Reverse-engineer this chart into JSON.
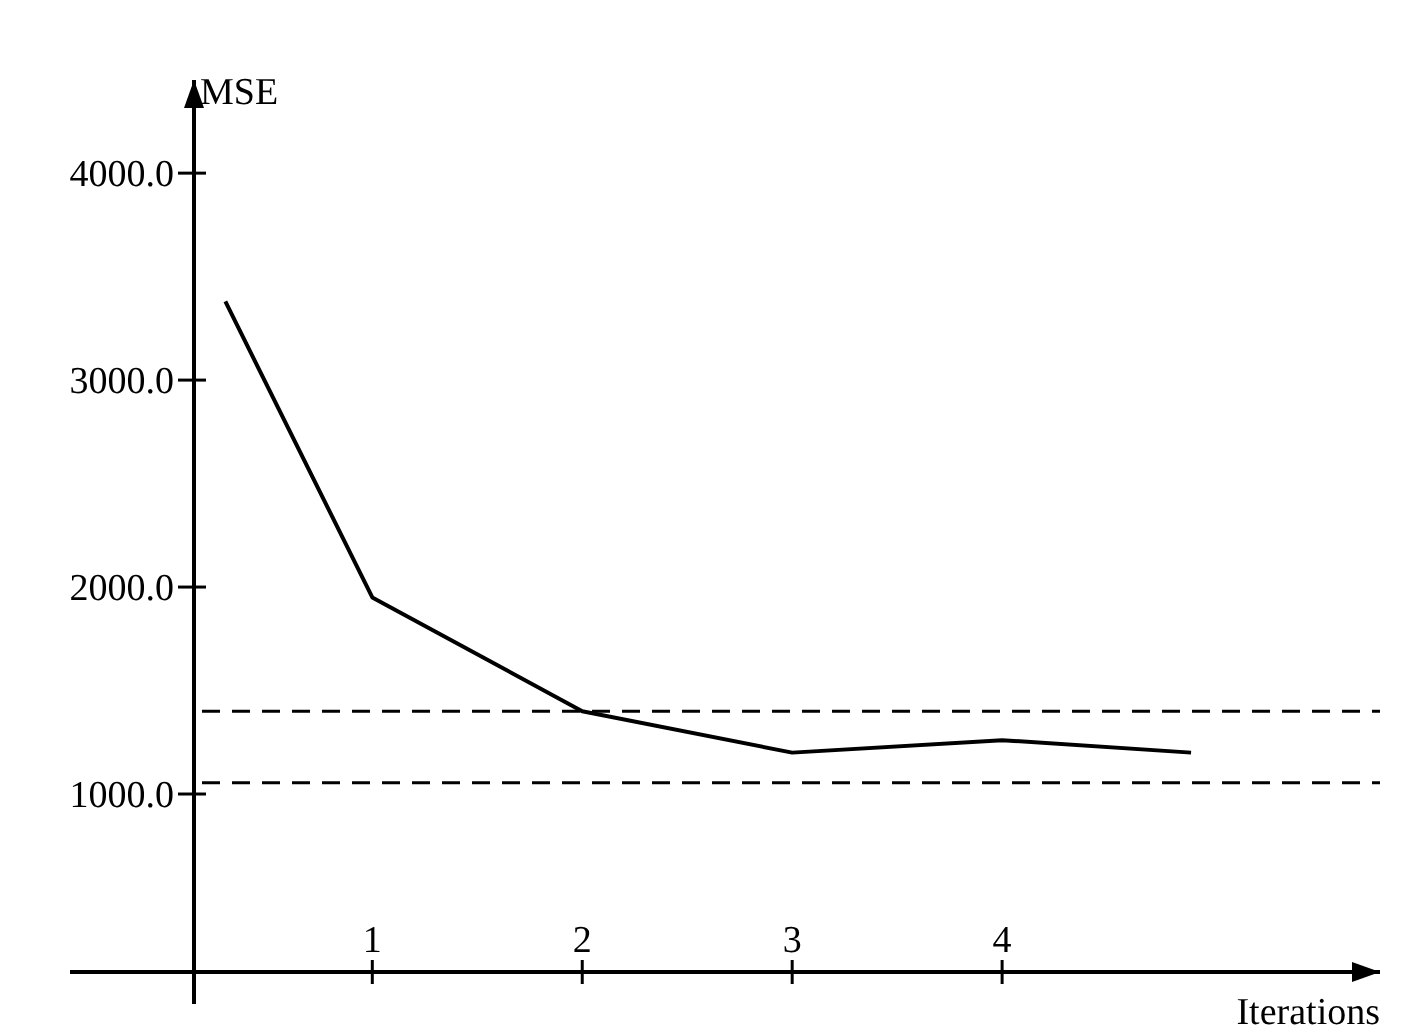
{
  "chart_data": {
    "type": "line",
    "xlabel": "Iterations",
    "ylabel": "MSE",
    "x": [
      0.3,
      1,
      2,
      3,
      4,
      4.9
    ],
    "series": [
      {
        "color": "#000000",
        "values": [
          3380,
          1950,
          1400,
          1200,
          1260,
          1200
        ]
      }
    ],
    "xlim": [
      -0.44,
      5.8
    ],
    "xticks": [
      1,
      2,
      3,
      4
    ],
    "ylim": [
      140,
      4450
    ],
    "yticks": [
      {
        "value": 1000,
        "label": "1000.0"
      },
      {
        "value": 2000,
        "label": "2000.0"
      },
      {
        "value": 3000,
        "label": "3000.0"
      },
      {
        "value": 4000,
        "label": "4000.0"
      }
    ],
    "ref_lines": [
      {
        "axis": "y",
        "value": 1400,
        "color": "#000000",
        "line_style": "dashed"
      },
      {
        "axis": "y",
        "value": 1055,
        "color": "#000000",
        "line_style": "dashed"
      }
    ],
    "grid": false,
    "marker": "none",
    "line_style": "solid"
  }
}
